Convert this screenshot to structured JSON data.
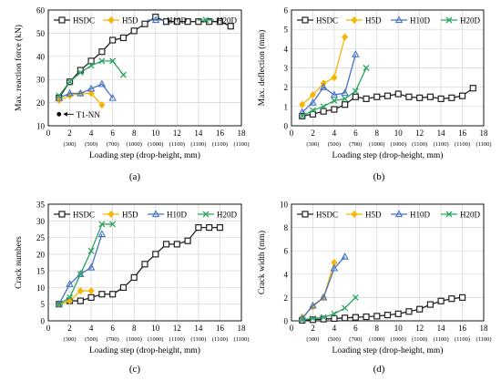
{
  "figure": {
    "panels": [
      {
        "id": "a",
        "caption": "(a)"
      },
      {
        "id": "b",
        "caption": "(b)"
      },
      {
        "id": "c",
        "caption": "(c)"
      },
      {
        "id": "d",
        "caption": "(d)"
      }
    ],
    "colors": {
      "HSDC": "#222222",
      "H5D": "#f7b500",
      "H10D": "#4472c4",
      "H20D": "#2ca25f"
    },
    "marker_names": {
      "HSDC": "open-square",
      "H5D": "diamond",
      "H10D": "triangle",
      "H20D": "x-cross"
    },
    "xticks": [
      0,
      2,
      4,
      6,
      8,
      10,
      12,
      14,
      16,
      18
    ],
    "xsubticks": [
      {
        "x": 2,
        "label": "(300)"
      },
      {
        "x": 4,
        "label": "(500)"
      },
      {
        "x": 6,
        "label": "(700)"
      },
      {
        "x": 8,
        "label": "(1000)"
      },
      {
        "x": 10,
        "label": "(1000)"
      },
      {
        "x": 12,
        "label": "(1100)"
      },
      {
        "x": 14,
        "label": "(1100)"
      },
      {
        "x": 16,
        "label": "(1100)"
      },
      {
        "x": 18,
        "label": "(1100)"
      }
    ]
  },
  "chart_data": [
    {
      "id": "a",
      "type": "line",
      "xlabel": "Loading step (drop-height, mm)",
      "ylabel": "Max. reaction force (kN)",
      "xlim": [
        0,
        18
      ],
      "ylim": [
        10,
        60
      ],
      "yticks": [
        10,
        20,
        30,
        40,
        50,
        60
      ],
      "legend": "top",
      "series": [
        {
          "name": "HSDC",
          "x": [
            1,
            2,
            3,
            4,
            5,
            6,
            7,
            8,
            9,
            10,
            11,
            12,
            13,
            14,
            15,
            16,
            17
          ],
          "y": [
            22,
            29,
            34,
            38,
            42,
            47,
            48,
            51,
            54,
            57,
            55,
            55,
            55,
            55,
            55,
            55,
            53
          ]
        },
        {
          "name": "H5D",
          "x": [
            1,
            2,
            3,
            4,
            5
          ],
          "y": [
            21,
            23,
            24,
            24,
            19
          ]
        },
        {
          "name": "H10D",
          "x": [
            1,
            2,
            3,
            4,
            5,
            6
          ],
          "y": [
            22,
            24,
            24,
            26,
            28,
            22
          ]
        },
        {
          "name": "H20D",
          "x": [
            1,
            2,
            3,
            4,
            5,
            6,
            7
          ],
          "y": [
            23,
            29,
            33,
            36,
            38,
            38,
            32
          ]
        }
      ],
      "annotation": {
        "text": "T1-NN",
        "point": [
          1,
          15
        ]
      }
    },
    {
      "id": "b",
      "type": "line",
      "xlabel": "Loading step (drop-height, mm)",
      "ylabel": "Max. deflection (mm)",
      "xlim": [
        0,
        18
      ],
      "ylim": [
        0,
        6
      ],
      "yticks": [
        0,
        1,
        2,
        3,
        4,
        5,
        6
      ],
      "legend": "top",
      "series": [
        {
          "name": "HSDC",
          "x": [
            1,
            2,
            3,
            4,
            5,
            6,
            7,
            8,
            9,
            10,
            11,
            12,
            13,
            14,
            15,
            16,
            17
          ],
          "y": [
            0.5,
            0.6,
            0.75,
            0.85,
            1.1,
            1.5,
            1.4,
            1.5,
            1.55,
            1.65,
            1.5,
            1.45,
            1.5,
            1.4,
            1.45,
            1.55,
            1.95
          ]
        },
        {
          "name": "H5D",
          "x": [
            1,
            2,
            3,
            4,
            5
          ],
          "y": [
            1.1,
            1.6,
            2.2,
            2.5,
            4.6
          ]
        },
        {
          "name": "H10D",
          "x": [
            1,
            2,
            3,
            4,
            5,
            6
          ],
          "y": [
            0.7,
            1.2,
            2.0,
            1.6,
            1.7,
            3.7
          ]
        },
        {
          "name": "H20D",
          "x": [
            1,
            2,
            3,
            4,
            5,
            6,
            7
          ],
          "y": [
            0.5,
            0.8,
            1.0,
            1.3,
            1.4,
            1.8,
            3.0
          ]
        }
      ]
    },
    {
      "id": "c",
      "type": "line",
      "xlabel": "Loading step (drop-height, mm)",
      "ylabel": "Crack numbers",
      "xlim": [
        0,
        18
      ],
      "ylim": [
        0,
        35
      ],
      "yticks": [
        0,
        5,
        10,
        15,
        20,
        25,
        30,
        35
      ],
      "legend": "top",
      "series": [
        {
          "name": "HSDC",
          "x": [
            1,
            2,
            3,
            4,
            5,
            6,
            7,
            8,
            9,
            10,
            11,
            12,
            13,
            14,
            15,
            16
          ],
          "y": [
            5,
            6,
            6,
            7,
            8,
            8,
            10,
            13,
            17,
            20,
            23,
            23,
            24,
            28,
            28,
            28
          ]
        },
        {
          "name": "H5D",
          "x": [
            1,
            2,
            3,
            4
          ],
          "y": [
            5,
            6,
            9,
            9
          ]
        },
        {
          "name": "H10D",
          "x": [
            1,
            2,
            3,
            4,
            5
          ],
          "y": [
            5,
            11,
            14,
            16,
            26
          ]
        },
        {
          "name": "H20D",
          "x": [
            1,
            2,
            3,
            4,
            5,
            6
          ],
          "y": [
            5,
            7,
            14,
            21,
            29,
            29
          ]
        }
      ]
    },
    {
      "id": "d",
      "type": "line",
      "xlabel": "Loading step (drop-height, mm)",
      "ylabel": "Crack width (mm)",
      "xlim": [
        0,
        18
      ],
      "ylim": [
        0,
        10
      ],
      "yticks": [
        0,
        2,
        4,
        6,
        8,
        10
      ],
      "legend": "top",
      "series": [
        {
          "name": "HSDC",
          "x": [
            1,
            2,
            3,
            4,
            5,
            6,
            7,
            8,
            9,
            10,
            11,
            12,
            13,
            14,
            15,
            16
          ],
          "y": [
            0.05,
            0.1,
            0.15,
            0.2,
            0.25,
            0.3,
            0.35,
            0.4,
            0.5,
            0.6,
            0.8,
            1.0,
            1.4,
            1.7,
            1.9,
            2.0
          ]
        },
        {
          "name": "H5D",
          "x": [
            1,
            2,
            3,
            4
          ],
          "y": [
            0.3,
            1.2,
            2.0,
            5.0
          ]
        },
        {
          "name": "H10D",
          "x": [
            1,
            2,
            3,
            4,
            5
          ],
          "y": [
            0.2,
            1.3,
            2.0,
            4.5,
            5.5
          ]
        },
        {
          "name": "H20D",
          "x": [
            1,
            2,
            3,
            4,
            5,
            6
          ],
          "y": [
            0.1,
            0.2,
            0.3,
            0.6,
            1.1,
            2.0
          ]
        }
      ]
    }
  ]
}
